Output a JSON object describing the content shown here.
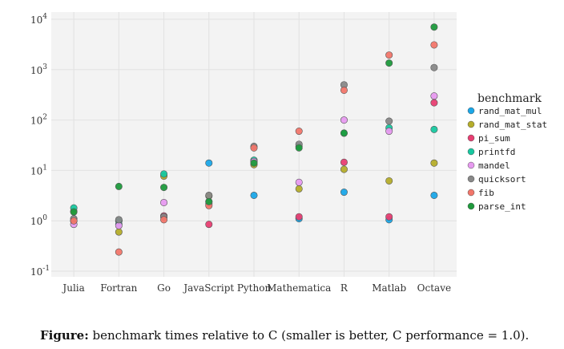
{
  "chart_data": {
    "type": "scatter",
    "y_scale": "log",
    "ylim": [
      0.1,
      10000
    ],
    "y_ticks": [
      {
        "value": 0.1,
        "base": "10",
        "exp": "-1"
      },
      {
        "value": 1,
        "base": "10",
        "exp": "0"
      },
      {
        "value": 10,
        "base": "10",
        "exp": "1"
      },
      {
        "value": 100,
        "base": "10",
        "exp": "2"
      },
      {
        "value": 1000,
        "base": "10",
        "exp": "3"
      },
      {
        "value": 10000,
        "base": "10",
        "exp": "4"
      }
    ],
    "categories": [
      "Julia",
      "Fortran",
      "Go",
      "JavaScript",
      "Python",
      "Mathematica",
      "R",
      "Matlab",
      "Octave"
    ],
    "grid": true,
    "legend_position": "right",
    "legend_title": "benchmark",
    "series": [
      {
        "name": "rand_mat_mul",
        "color": "#1aa7e8",
        "values": [
          1.0,
          0.85,
          1.2,
          14,
          3.2,
          1.1,
          3.7,
          1.05,
          3.2
        ]
      },
      {
        "name": "rand_mat_stat",
        "color": "#b5ad2a",
        "values": [
          1.55,
          0.6,
          7.7,
          3.1,
          13,
          4.3,
          10.5,
          6.2,
          14
        ]
      },
      {
        "name": "pi_sum",
        "color": "#e83e72",
        "values": [
          1.0,
          1.0,
          1.25,
          0.85,
          15,
          1.2,
          14.5,
          1.2,
          220
        ]
      },
      {
        "name": "printfd",
        "color": "#16c8a0",
        "values": [
          1.8,
          1.0,
          8.5,
          2.4,
          16,
          30,
          55,
          70,
          65
        ]
      },
      {
        "name": "mandel",
        "color": "#e79af0",
        "values": [
          0.85,
          0.8,
          2.3,
          2.2,
          15,
          5.8,
          100,
          60,
          300
        ]
      },
      {
        "name": "quicksort",
        "color": "#888888",
        "values": [
          1.1,
          1.05,
          1.2,
          3.2,
          30,
          33,
          500,
          95,
          1100
        ]
      },
      {
        "name": "fib",
        "color": "#f2766a",
        "values": [
          1.0,
          0.24,
          1.05,
          2.0,
          28,
          60,
          390,
          1950,
          3100
        ]
      },
      {
        "name": "parse_int",
        "color": "#1e9a3c",
        "values": [
          1.5,
          4.8,
          4.6,
          2.4,
          14,
          28,
          55,
          1350,
          7000
        ]
      }
    ]
  },
  "caption": {
    "bold": "Figure:",
    "text": " benchmark times relative to C (smaller is better, C performance = 1.0)."
  }
}
